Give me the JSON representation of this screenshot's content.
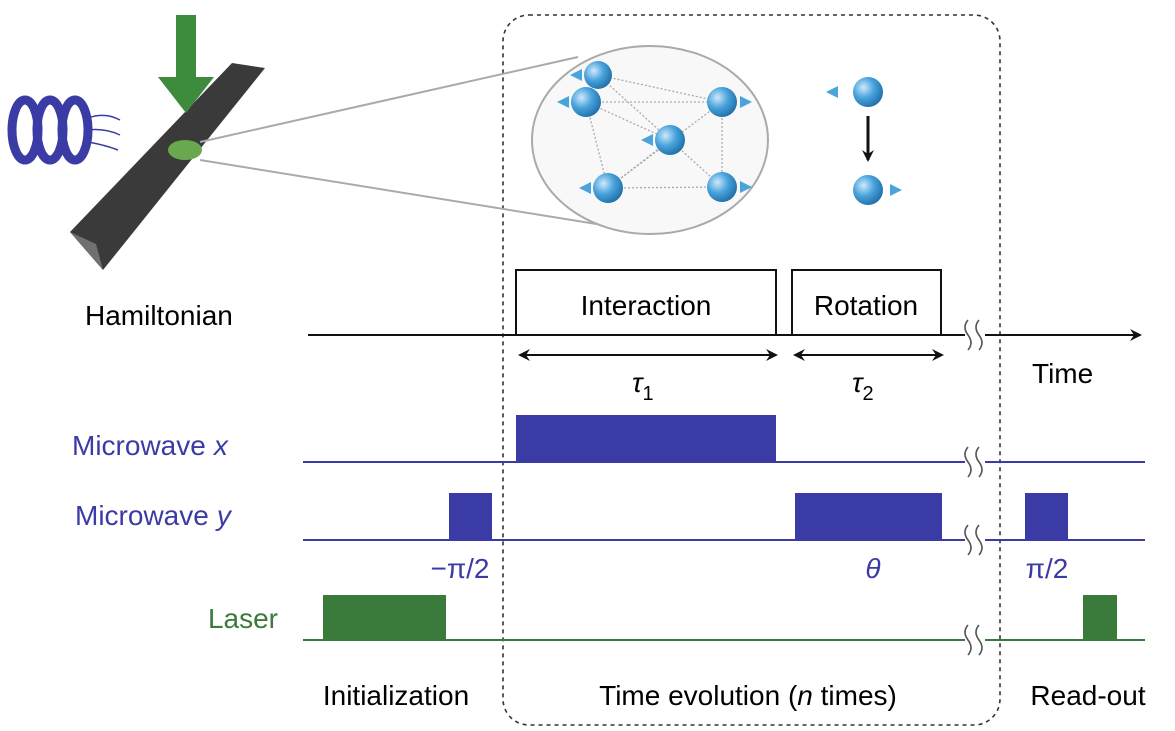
{
  "hamiltonian_label": "Hamiltonian",
  "blocks": {
    "interaction": "Interaction",
    "rotation": "Rotation"
  },
  "time_label": "Time",
  "durations": [
    {
      "symbol": "τ",
      "subscript": "1"
    },
    {
      "symbol": "τ",
      "subscript": "2"
    }
  ],
  "channels": [
    {
      "name": "Microwave",
      "variable": "x"
    },
    {
      "name": "Microwave",
      "variable": "y"
    },
    {
      "name": "Laser"
    }
  ],
  "pulse_labels": [
    "−π/2",
    "θ",
    "π/2"
  ],
  "phases": {
    "initialization": "Initialization",
    "evolution": {
      "before": "Time evolution (",
      "variable": "n",
      "after": " times)"
    },
    "readout": "Read-out"
  }
}
